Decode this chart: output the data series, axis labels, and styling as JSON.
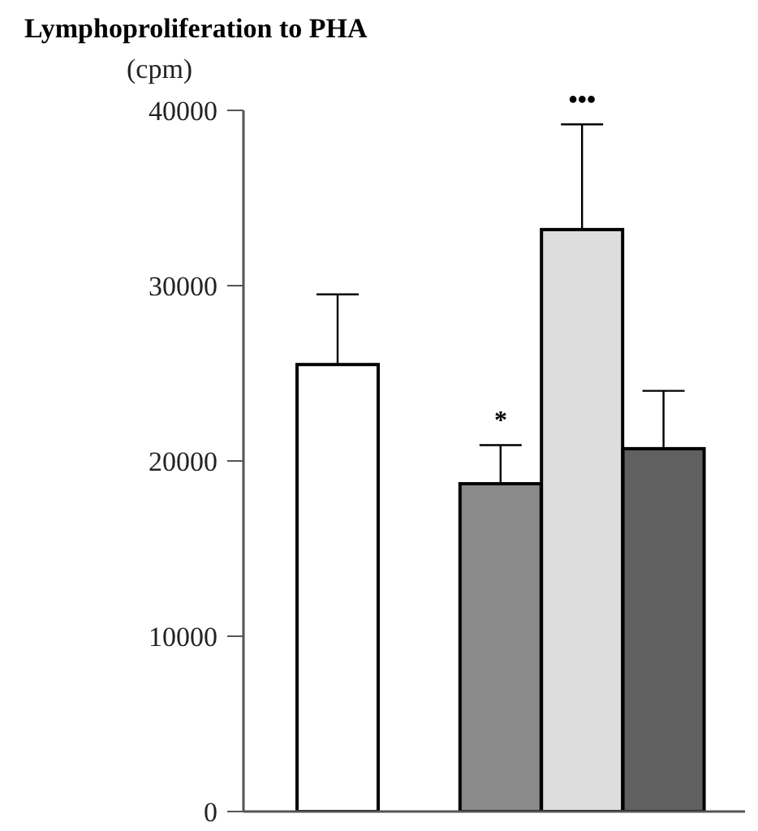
{
  "chart_data": {
    "type": "bar",
    "title": "Lymphoproliferation to PHA",
    "ylabel": "(cpm)",
    "categories": [
      null,
      null,
      null,
      null,
      null
    ],
    "values": [
      25500,
      null,
      18700,
      33200,
      20700
    ],
    "errors": [
      [
        25500,
        29500
      ],
      null,
      [
        18700,
        20900
      ],
      [
        33200,
        39200
      ],
      [
        20700,
        24000
      ]
    ],
    "colors": [
      "#ffffff",
      "#ffffff",
      "#8a8a8a",
      "#dddddd",
      "#606060"
    ],
    "ylim": [
      0,
      40000
    ],
    "yticks": [
      0,
      10000,
      20000,
      30000,
      40000
    ],
    "annotations": [
      "*",
      "•••"
    ],
    "grid": false,
    "legend": false
  }
}
